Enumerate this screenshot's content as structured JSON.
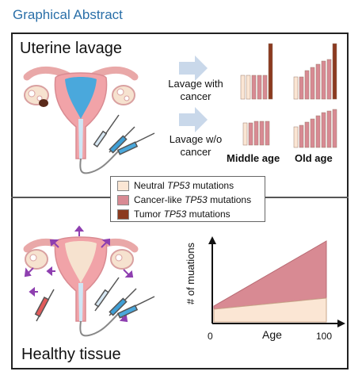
{
  "header": {
    "title": "Graphical Abstract"
  },
  "top_panel": {
    "title": "Uterine lavage",
    "row1_label": [
      "Lavage with",
      "cancer"
    ],
    "row2_label": [
      "Lavage w/o",
      "cancer"
    ],
    "middle_age_label": "Middle age",
    "old_age_label": "Old age"
  },
  "legend": {
    "items": [
      {
        "prefix": "Neutral ",
        "gene": "TP53",
        "suffix": " mutations",
        "color": "#fbe6d4"
      },
      {
        "prefix": "Cancer-like ",
        "gene": "TP53",
        "suffix": " mutations",
        "color": "#d88a93"
      },
      {
        "prefix": "Tumor ",
        "gene": "TP53",
        "suffix": " mutations",
        "color": "#8b3a1f"
      }
    ]
  },
  "bottom_panel": {
    "title": "Healthy tissue",
    "graph": {
      "ylabel": "# of muations",
      "xlabel": "Age",
      "x_start": "0",
      "x_end": "100"
    }
  },
  "colors": {
    "neutral": "#fbe6d4",
    "cancer_like": "#d88a93",
    "tumor": "#8b3a1f",
    "header_blue": "#2a6fa8",
    "arrow": "#c9d8ea"
  }
}
